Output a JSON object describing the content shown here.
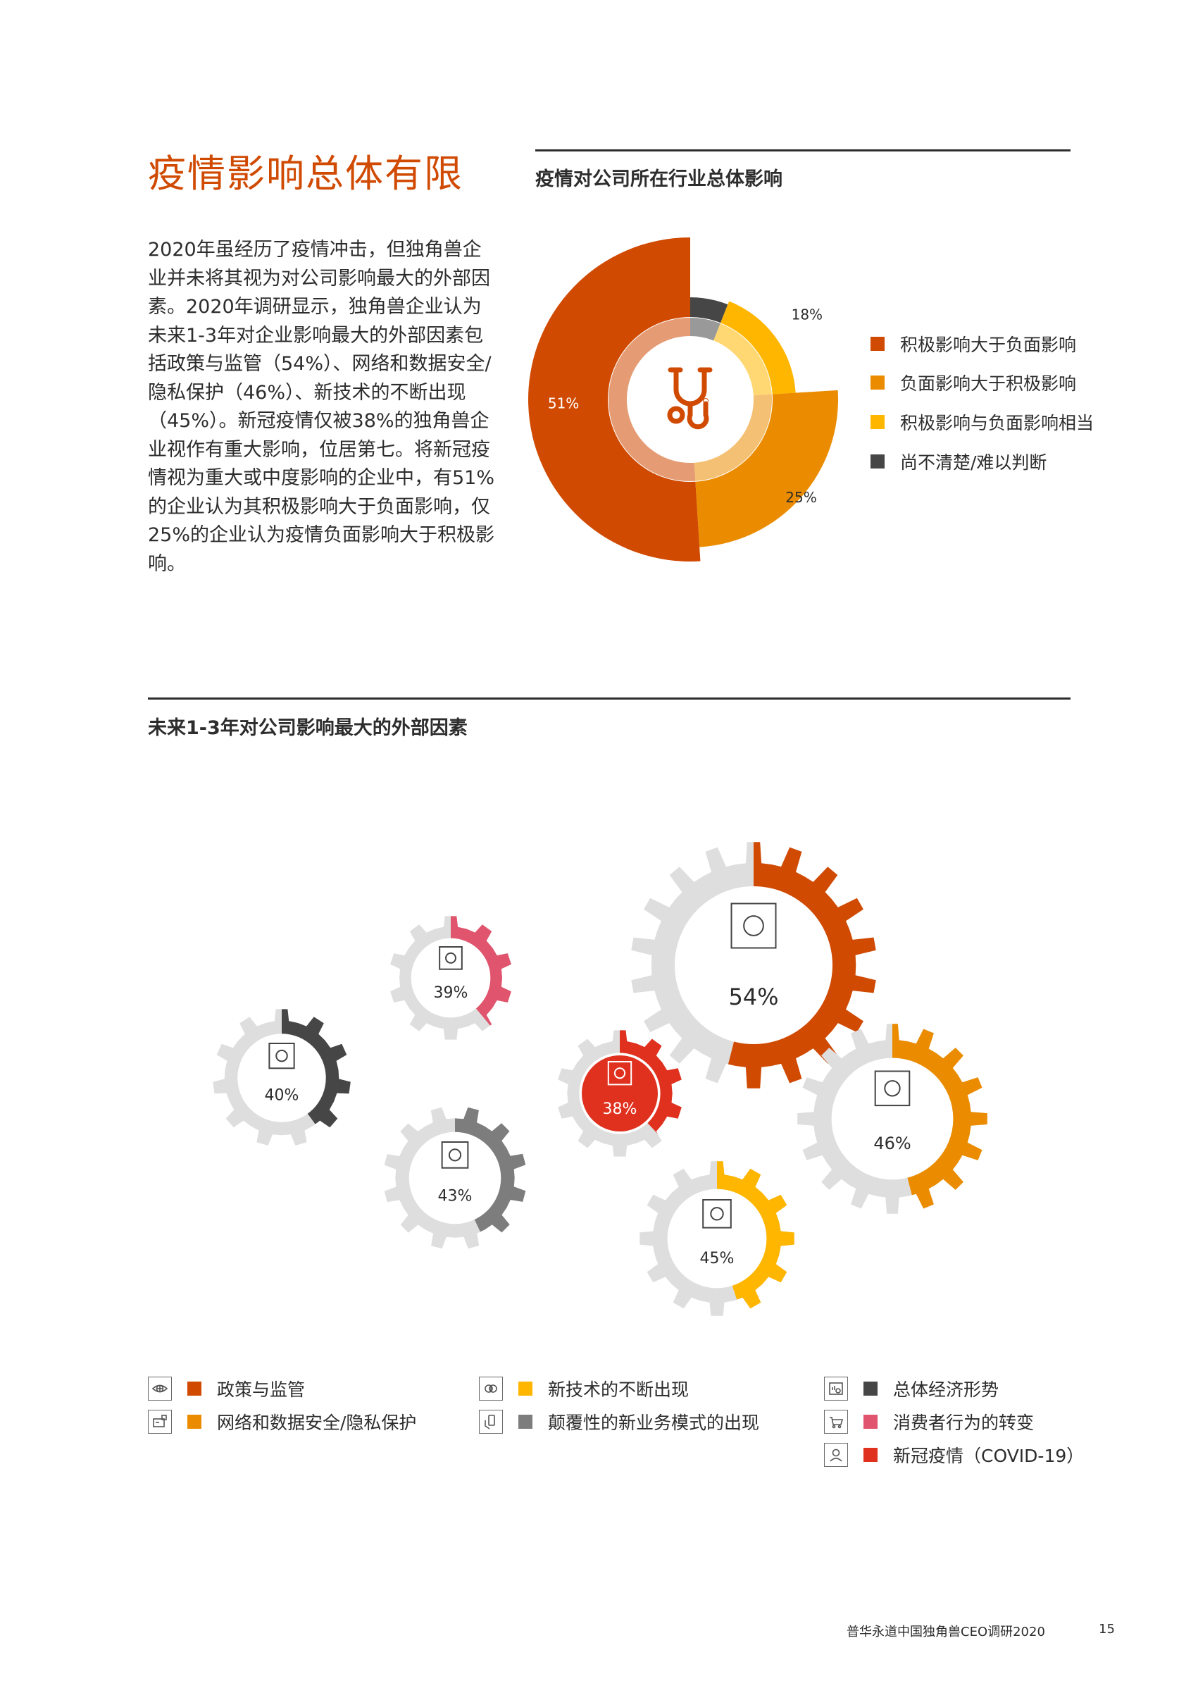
{
  "page": {
    "title": "疫情影响总体有限",
    "intro": "2020年虽经历了疫情冲击，但独角兽企业并未将其视为对公司影响最大的外部因素。2020年调研显示，独角兽企业认为未来1-3年对企业影响最大的外部因素包括政策与监管（54%）、网络和数据安全/隐私保护（46%）、新技术的不断出现（45%）。新冠疫情仅被38%的独角兽企业视作有重大影响，位居第七。将新冠疫情视为重大或中度影响的企业中，有51%的企业认为其积极影响大于负面影响，仅25%的企业认为疫情负面影响大于积极影响。",
    "footer": "普华永道中国独角兽CEO调研2020",
    "page_number": "15"
  },
  "colors": {
    "accent": "#d04a02",
    "orange": "#eb8c00",
    "yellow": "#ffb600",
    "dark": "#464646",
    "grey": "#7d7d7d",
    "pink": "#e0546d",
    "red": "#e0301e",
    "light_grey": "#dedede"
  },
  "chart_data": [
    {
      "type": "pie",
      "title": "疫情对公司所在行业总体影响",
      "center_icon": "stethoscope-icon",
      "slices": [
        {
          "label": "积极影响大于负面影响",
          "value": 51,
          "value_label": "51%",
          "color": "#d04a02"
        },
        {
          "label": "负面影响大于积极影响",
          "value": 25,
          "value_label": "25%",
          "color": "#eb8c00"
        },
        {
          "label": "积极影响与负面影响相当",
          "value": 18,
          "value_label": "18%",
          "color": "#ffb600"
        },
        {
          "label": "尚不清楚/难以判断",
          "value": 6,
          "value_label": "6%",
          "color": "#464646"
        }
      ]
    },
    {
      "type": "bar",
      "title": "未来1-3年对公司影响最大的外部因素",
      "categories": [
        "政策与监管",
        "网络和数据安全/隐私保护",
        "新技术的不断出现",
        "颠覆性的新业务模式的出现",
        "总体经济形势",
        "消费者行为的转变",
        "新冠疫情（COVID-19）"
      ],
      "values": [
        54,
        46,
        45,
        43,
        40,
        39,
        38
      ],
      "value_labels": [
        "54%",
        "46%",
        "45%",
        "43%",
        "40%",
        "39%",
        "38%"
      ],
      "colors": [
        "#d04a02",
        "#eb8c00",
        "#ffb600",
        "#7d7d7d",
        "#464646",
        "#e0546d",
        "#e0301e"
      ],
      "icons": [
        "eye-icon",
        "security-card-icon",
        "brain-chip-icon",
        "phone-hand-icon",
        "chart-magnifier-icon",
        "shopping-cart-icon",
        "doctor-icon"
      ]
    }
  ]
}
